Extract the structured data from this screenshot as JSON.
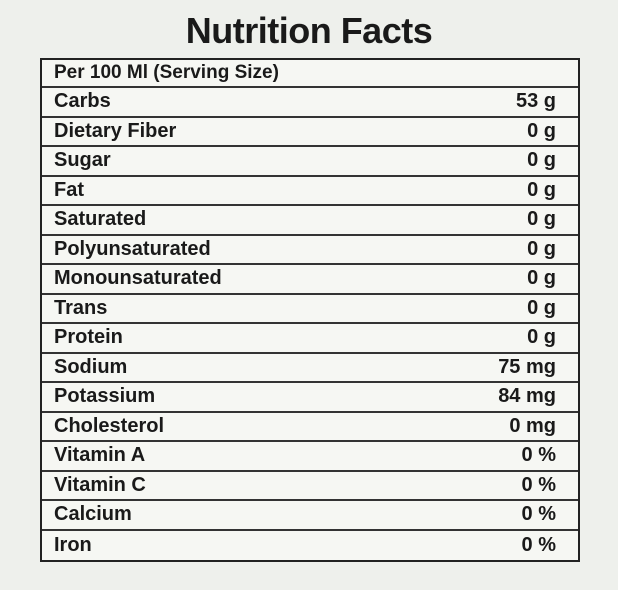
{
  "header": {
    "title": "Nutrition Facts"
  },
  "table": {
    "caption": "Per 100 Ml (Serving Size)",
    "rows": [
      [
        "Carbs",
        "53 g"
      ],
      [
        "Dietary Fiber",
        "0 g"
      ],
      [
        "Sugar",
        "0 g"
      ],
      [
        "Fat",
        "0 g"
      ],
      [
        "Saturated",
        "0 g"
      ],
      [
        "Polyunsaturated",
        "0 g"
      ],
      [
        "Monounsaturated",
        "0 g"
      ],
      [
        "Trans",
        "0 g"
      ],
      [
        "Protein",
        "0 g"
      ],
      [
        "Sodium",
        "75 mg"
      ],
      [
        "Potassium",
        "84 mg"
      ],
      [
        "Cholesterol",
        "0 mg"
      ],
      [
        "Vitamin A",
        "0 %"
      ],
      [
        "Vitamin C",
        "0 %"
      ],
      [
        "Calcium",
        "0 %"
      ],
      [
        "Iron",
        "0 %"
      ]
    ]
  }
}
